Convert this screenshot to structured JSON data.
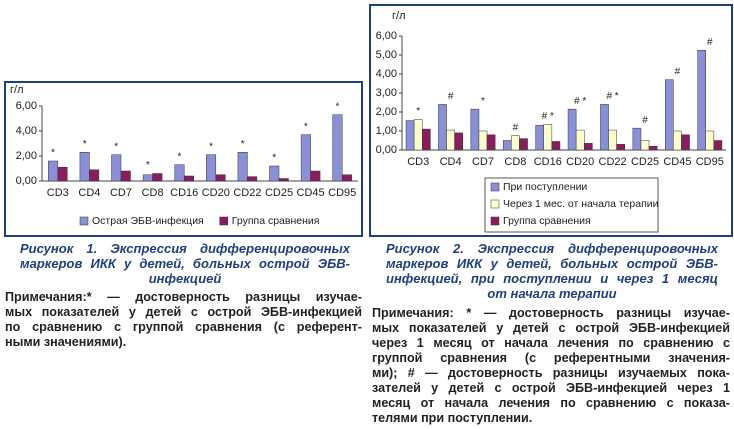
{
  "chart_data": [
    {
      "type": "bar",
      "y_label": "г/л",
      "categories": [
        "CD3",
        "CD4",
        "CD7",
        "CD8",
        "CD16",
        "CD20",
        "CD22",
        "CD25",
        "CD45",
        "CD95"
      ],
      "series": [
        {
          "name": "Острая ЭБВ-инфекция",
          "color": "#8a8fd8",
          "values": [
            1.6,
            2.3,
            2.1,
            0.5,
            1.3,
            2.1,
            2.3,
            1.2,
            3.7,
            5.3
          ]
        },
        {
          "name": "Группа сравнения",
          "color": "#8b1d5e",
          "values": [
            1.1,
            0.9,
            0.8,
            0.6,
            0.4,
            0.5,
            0.35,
            0.2,
            0.8,
            0.5
          ]
        }
      ],
      "markers": [
        "*",
        "*",
        "*",
        "*",
        "*",
        "*",
        "*",
        "*",
        "*",
        "*"
      ],
      "ylim": [
        0,
        6
      ],
      "yticks": [
        {
          "value": 0,
          "label": "0,00"
        },
        {
          "value": 2,
          "label": "2,00"
        },
        {
          "value": 4,
          "label": "4,00"
        },
        {
          "value": 6,
          "label": "6,00"
        }
      ],
      "legend": "bottom"
    },
    {
      "type": "bar",
      "y_label": "г/л",
      "categories": [
        "CD3",
        "CD4",
        "CD7",
        "CD8",
        "CD16",
        "CD20",
        "CD22",
        "CD25",
        "CD45",
        "CD95"
      ],
      "series": [
        {
          "name": "При поступлении",
          "color": "#8a8fd8",
          "values": [
            1.55,
            2.4,
            2.15,
            0.5,
            1.3,
            2.15,
            2.4,
            1.15,
            3.7,
            5.25
          ]
        },
        {
          "name": "Через 1 мес. от начала терапии",
          "color": "#ffffcc",
          "values": [
            1.6,
            1.05,
            1.0,
            0.75,
            1.35,
            1.05,
            1.05,
            0.5,
            1.0,
            1.0
          ]
        },
        {
          "name": "Группа сравнения",
          "color": "#8b1d5e",
          "values": [
            1.1,
            0.9,
            0.8,
            0.6,
            0.45,
            0.35,
            0.3,
            0.2,
            0.8,
            0.5
          ]
        }
      ],
      "markers": [
        "*",
        "#",
        "*",
        "#",
        "# *",
        "# *",
        "# *",
        "#",
        "#",
        "#"
      ],
      "ylim": [
        0,
        6
      ],
      "yticks": [
        {
          "value": 0,
          "label": "0,00"
        },
        {
          "value": 1,
          "label": "1,00"
        },
        {
          "value": 2,
          "label": "2,00"
        },
        {
          "value": 3,
          "label": "3,00"
        },
        {
          "value": 4,
          "label": "4,00"
        },
        {
          "value": 5,
          "label": "5,00"
        },
        {
          "value": 6,
          "label": "6,00"
        }
      ],
      "legend": "bottom"
    }
  ],
  "figures": [
    {
      "caption": [
        "Рисунок 1. Экспрессия дифференцировочных",
        "маркеров ИКК у детей, больных острой ЭБВ-",
        "инфекцией"
      ],
      "note": [
        "Примечания:* — достоверность разницы изучае-",
        "мых показателей у детей с острой ЭБВ-инфекцией",
        "по сравнению с группой сравнения (с референт-",
        "ными значениями)."
      ]
    },
    {
      "caption": [
        "Рисунок 2. Экспрессия дифференцировочных",
        "маркеров ИКК у детей, больных острой ЭБВ-",
        "инфекцией, при поступлении и через 1 месяц",
        "от начала терапии"
      ],
      "note": [
        "Примечания: * — достоверность разницы изучае-",
        "мых показателей у детей с острой ЭБВ-инфекцией",
        "через 1 месяц от начала лечения по сравнению с",
        "группой сравнения (с референтными значения-",
        "ми); # — достоверность разницы изучаемых пока-",
        "зателей у детей с острой ЭБВ-инфекцией через 1",
        "месяц от начала лечения по сравнению с показа-",
        "телями при поступлении."
      ]
    }
  ]
}
